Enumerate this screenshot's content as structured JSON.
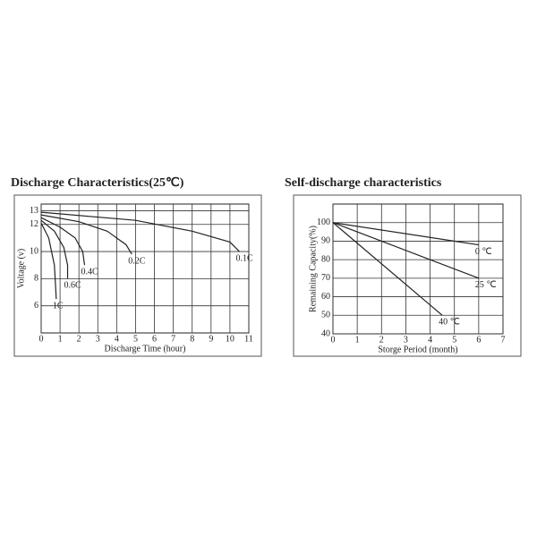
{
  "chart_data": [
    {
      "type": "line",
      "title": "Discharge Characteristics(25℃)",
      "xlabel": "Discharge Time (hour)",
      "ylabel": "Voltage (v)",
      "xlim": [
        0,
        11
      ],
      "xticks": [
        0,
        1,
        2,
        3,
        4,
        5,
        6,
        7,
        8,
        9,
        10,
        11
      ],
      "ylim": [
        4,
        13.5
      ],
      "yticks": [
        6,
        8,
        10,
        12,
        13
      ],
      "grid": true,
      "color": "#222",
      "series": [
        {
          "name": "1C",
          "x": [
            0,
            0.4,
            0.7,
            0.8
          ],
          "values": [
            12.1,
            11,
            9,
            6.5
          ]
        },
        {
          "name": "0.6C",
          "x": [
            0,
            0.7,
            1.2,
            1.4,
            1.4
          ],
          "values": [
            12.3,
            11.5,
            10.3,
            9,
            8
          ]
        },
        {
          "name": "0.4C",
          "x": [
            0,
            1,
            1.8,
            2.2,
            2.3
          ],
          "values": [
            12.5,
            11.8,
            11,
            10,
            9
          ]
        },
        {
          "name": "0.2C",
          "x": [
            0,
            2,
            3.5,
            4.5,
            4.8
          ],
          "values": [
            12.7,
            12.2,
            11.5,
            10.5,
            9.8
          ]
        },
        {
          "name": "0.1C",
          "x": [
            0,
            5,
            8,
            10,
            10.5
          ],
          "values": [
            12.9,
            12.3,
            11.5,
            10.7,
            10
          ]
        }
      ]
    },
    {
      "type": "line",
      "title": "Self-discharge characteristics",
      "xlabel": "Storge Period (month)",
      "ylabel": "Remaining Capacity(%)",
      "xlim": [
        0,
        7
      ],
      "xticks": [
        0,
        1,
        2,
        3,
        4,
        5,
        6,
        7
      ],
      "ylim": [
        40,
        110
      ],
      "yticks": [
        40,
        50,
        60,
        70,
        80,
        90,
        100
      ],
      "grid": true,
      "color": "#222",
      "series": [
        {
          "name": "0 ℃",
          "x": [
            0,
            6
          ],
          "values": [
            100,
            88
          ]
        },
        {
          "name": "25 ℃",
          "x": [
            0,
            6
          ],
          "values": [
            100,
            70
          ]
        },
        {
          "name": "40 ℃",
          "x": [
            0,
            4.5
          ],
          "values": [
            100,
            50
          ]
        }
      ]
    }
  ]
}
